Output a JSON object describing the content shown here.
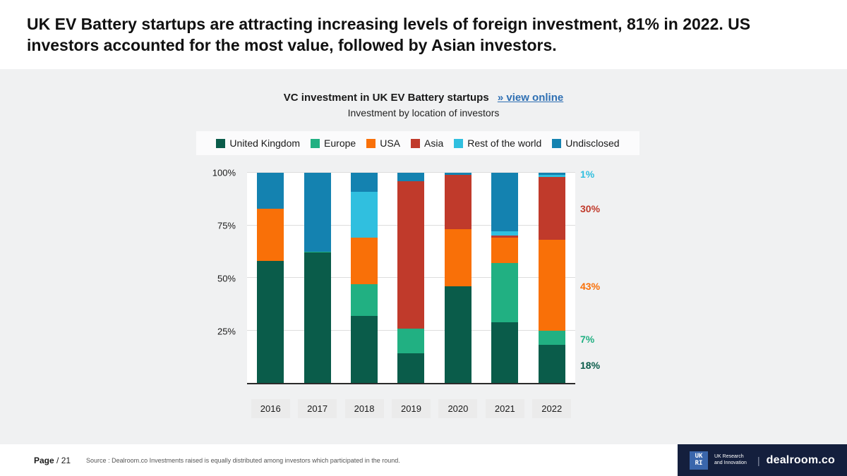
{
  "header": {
    "title": "UK EV Battery startups are attracting increasing levels of foreign investment, 81% in 2022. US investors accounted for the most value, followed by Asian investors."
  },
  "chart": {
    "title": "VC investment in UK EV Battery startups",
    "link": "» view online",
    "subtitle": "Investment by location of investors"
  },
  "chart_data": {
    "type": "bar",
    "subtype": "stacked-100-percent",
    "title": "VC investment in UK EV Battery startups",
    "subtitle": "Investment by location of investors",
    "xlabel": "",
    "ylabel": "",
    "ylim": [
      0,
      100
    ],
    "grid": true,
    "legend_position": "top",
    "categories": [
      "2016",
      "2017",
      "2018",
      "2019",
      "2020",
      "2021",
      "2022"
    ],
    "yticks": [
      {
        "value": 25,
        "label": "25%"
      },
      {
        "value": 50,
        "label": "50%"
      },
      {
        "value": 75,
        "label": "75%"
      },
      {
        "value": 100,
        "label": "100%"
      }
    ],
    "gridlines": [
      25,
      50,
      75,
      100
    ],
    "series": [
      {
        "name": "United Kingdom",
        "color": "#0a5c4a",
        "values": [
          58,
          62,
          32,
          14,
          46,
          29,
          18
        ]
      },
      {
        "name": "Europe",
        "color": "#21b082",
        "values": [
          0,
          0.5,
          15,
          12,
          0,
          28,
          7
        ]
      },
      {
        "name": "USA",
        "color": "#f97008",
        "values": [
          25,
          0,
          22,
          0,
          27,
          12,
          43
        ]
      },
      {
        "name": "Asia",
        "color": "#c03a2b",
        "values": [
          0,
          0,
          0,
          70,
          26,
          1,
          30
        ]
      },
      {
        "name": "Rest of the world",
        "color": "#30bfdf",
        "values": [
          0,
          0,
          22,
          0,
          0,
          2,
          1
        ]
      },
      {
        "name": "Undisclosed",
        "color": "#1482b0",
        "values": [
          17,
          37.5,
          9,
          4,
          1,
          28,
          1
        ]
      }
    ],
    "annotations": [
      {
        "label": "1%",
        "series": "Rest of the world",
        "center": 99.5
      },
      {
        "label": "30%",
        "series": "Asia",
        "center": 83
      },
      {
        "label": "43%",
        "series": "USA",
        "center": 46.5
      },
      {
        "label": "7%",
        "series": "Europe",
        "center": 21.5
      },
      {
        "label": "18%",
        "series": "United Kingdom",
        "center": 9
      }
    ]
  },
  "footer": {
    "page_label": "Page",
    "page_number": "/ 21",
    "source": "Source : Dealroom.co  Investments raised is equally distributed among investors which participated in the round.",
    "ukri_logo": "UK\nRI",
    "ukri_text": "UK Research and Innovation",
    "separator": "|",
    "dealroom": "dealroom.co"
  }
}
